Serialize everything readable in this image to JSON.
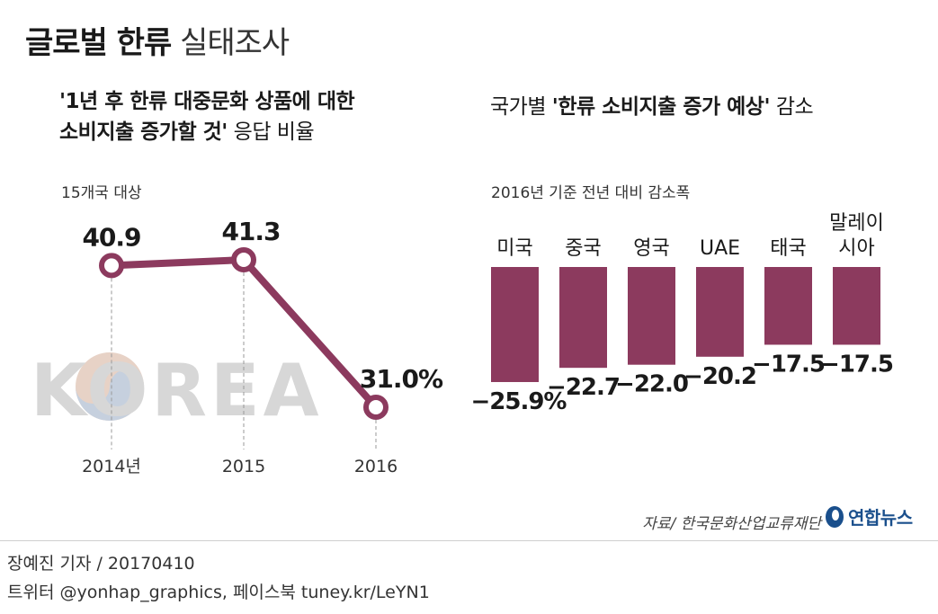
{
  "header": {
    "title_bold": "글로벌 한류",
    "title_light": "실태조사"
  },
  "left_panel": {
    "subtitle_line1_bold": "'1년 후 한류 대중문화 상품에 대한",
    "subtitle_line2_bold": "소비지출 증가할 것'",
    "subtitle_line2_light": "응답 비율",
    "note": "15개국 대상",
    "watermark": "KOREA"
  },
  "right_panel": {
    "subtitle_light_prefix": "국가별",
    "subtitle_bold": "'한류 소비지출 증가 예상'",
    "subtitle_light_suffix": "감소",
    "note": "2016년 기준 전년 대비 감소폭"
  },
  "chart_data": [
    {
      "type": "line",
      "title": "'1년 후 한류 대중문화 상품에 대한 소비지출 증가할 것' 응답 비율",
      "categories": [
        "2014년",
        "2015",
        "2016"
      ],
      "values": [
        40.9,
        41.3,
        31.0
      ],
      "data_labels": [
        "40.9",
        "41.3",
        "31.0%"
      ],
      "ylim": [
        25,
        45
      ],
      "grid": false,
      "color": "#8c3a5e"
    },
    {
      "type": "bar",
      "title": "국가별 '한류 소비지출 증가 예상' 감소",
      "categories": [
        "미국",
        "중국",
        "영국",
        "UAE",
        "태국",
        "말레이시아"
      ],
      "category_lines": [
        [
          "미국"
        ],
        [
          "중국"
        ],
        [
          "영국"
        ],
        [
          "UAE"
        ],
        [
          "태국"
        ],
        [
          "말레이",
          "시아"
        ]
      ],
      "values": [
        -25.9,
        -22.7,
        -22.0,
        -20.2,
        -17.5,
        -17.5
      ],
      "data_labels": [
        "−25.9%",
        "−22.7",
        "−22.0",
        "−20.2",
        "−17.5",
        "−17.5"
      ],
      "ylim": [
        -30,
        0
      ],
      "grid": false,
      "color": "#8c3a5e"
    }
  ],
  "footer": {
    "source": "자료/ 한국문화산업교류재단",
    "credit_line1": "장예진 기자 / 20170410",
    "credit_line2": "트위터 @yonhap_graphics, 페이스북 tuney.kr/LeYN1",
    "logo_text": "연합뉴스"
  }
}
